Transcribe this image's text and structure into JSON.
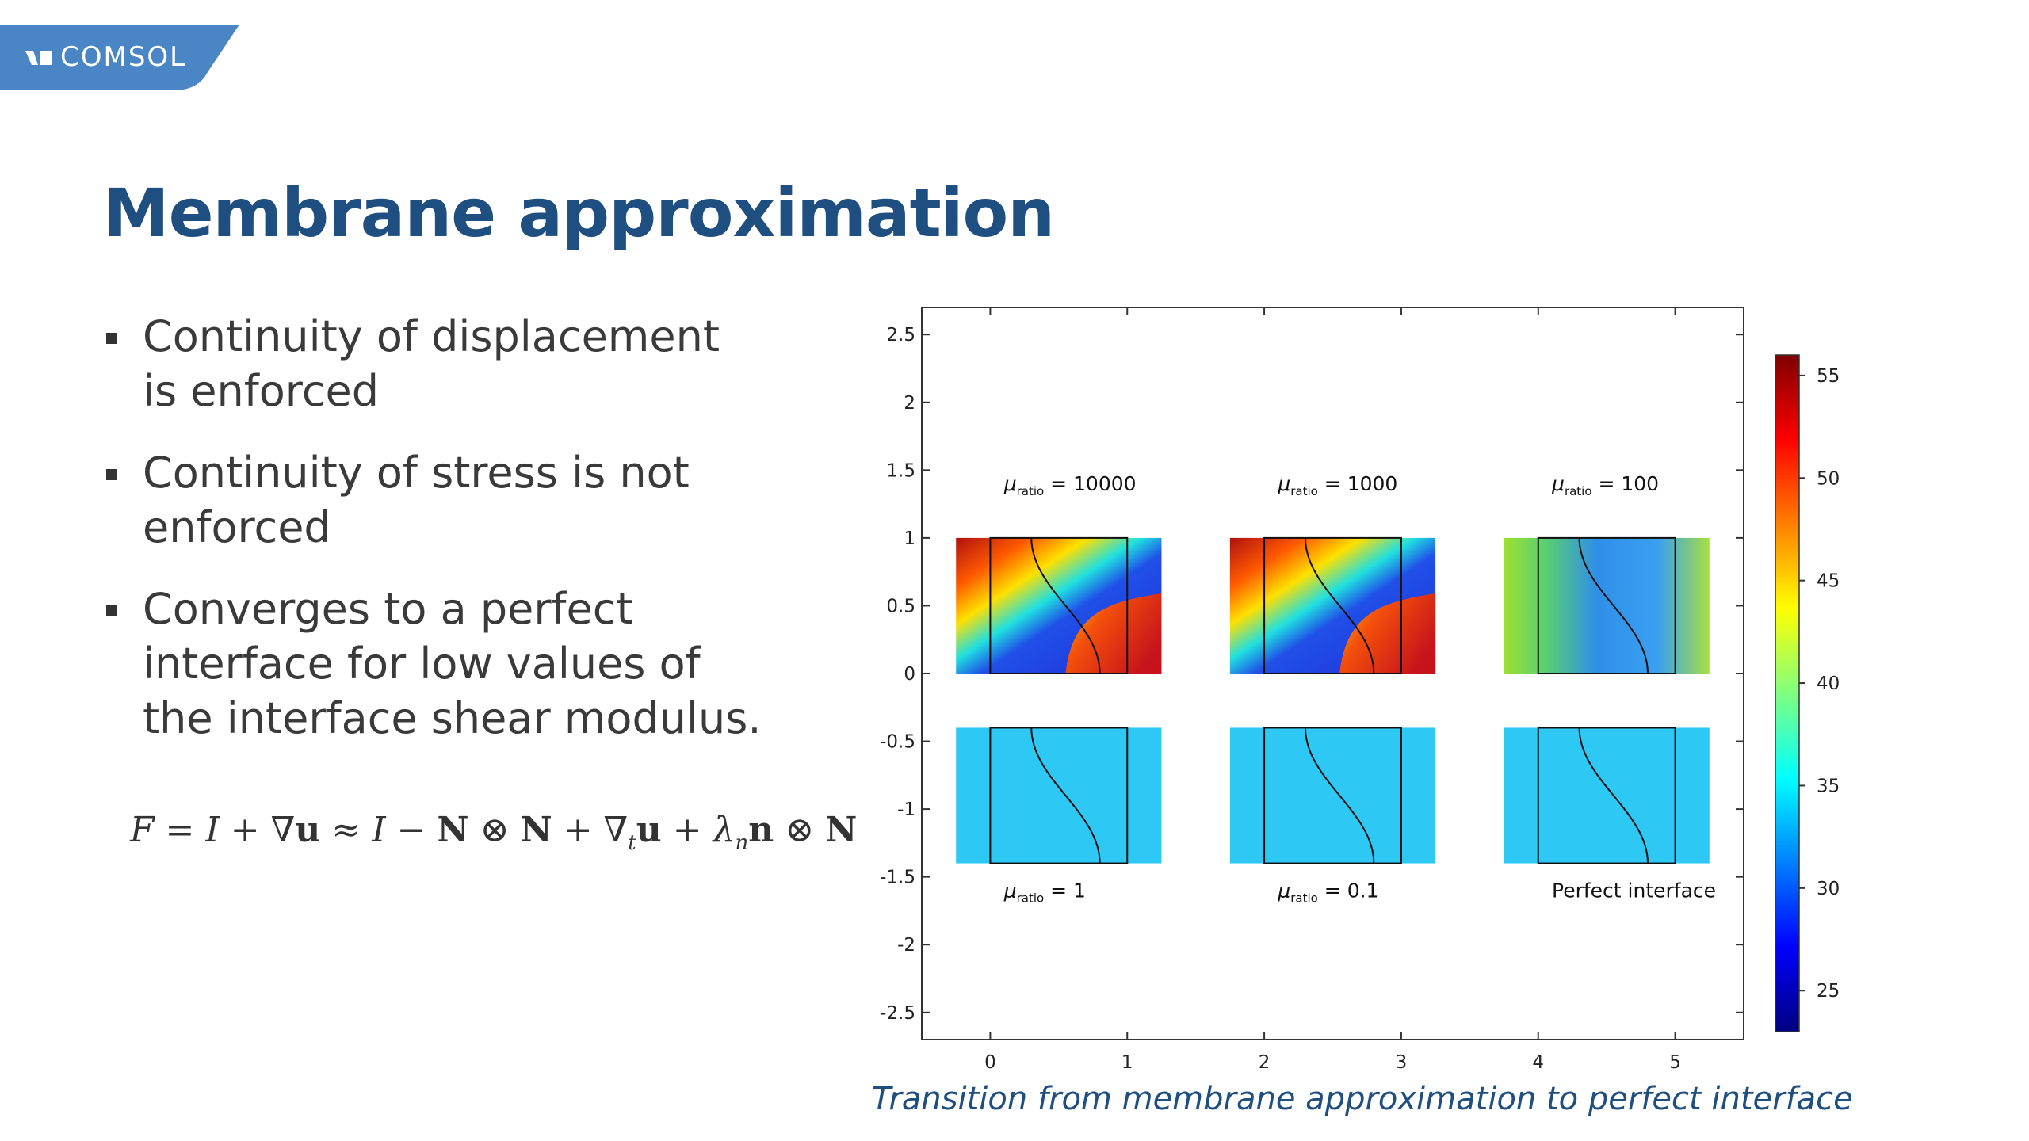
{
  "brand": {
    "logo_text": "COMSOL"
  },
  "slide": {
    "title": "Membrane approximation",
    "bullets": [
      {
        "lines": [
          "Continuity of displacement",
          "is enforced"
        ]
      },
      {
        "lines": [
          "Continuity of stress is not",
          "enforced"
        ]
      },
      {
        "lines": [
          "Converges to a perfect",
          "interface for low values of",
          "the interface shear modulus."
        ]
      }
    ],
    "formula": {
      "F": "F",
      "eq": " = ",
      "I": "I",
      "plus": " + ",
      "nabla": "∇",
      "u": "u",
      "approx": " ≈ ",
      "minus": " − ",
      "N": "N",
      "otimes": " ⊗ ",
      "t": "t",
      "lambda": "λ",
      "n_sub": "n",
      "n": "n"
    },
    "caption": "Transition from membrane approximation to perfect interface"
  },
  "figure": {
    "x_ticks": [
      "0",
      "1",
      "2",
      "3",
      "4",
      "5"
    ],
    "y_ticks": [
      "2.5",
      "2",
      "1.5",
      "1",
      "0.5",
      "0",
      "-0.5",
      "-1",
      "-1.5",
      "-2",
      "-2.5"
    ],
    "xlim": [
      -0.5,
      5.5
    ],
    "ylim": [
      -2.7,
      2.7
    ],
    "colorbar": {
      "ticks": [
        "55",
        "50",
        "45",
        "40",
        "35",
        "30",
        "25"
      ],
      "range": [
        23,
        56
      ],
      "colormap": "jet"
    },
    "panels_top": [
      {
        "mu_symbol": "μ",
        "sub": "ratio",
        "value": " = 10000"
      },
      {
        "mu_symbol": "μ",
        "sub": "ratio",
        "value": " = 1000"
      },
      {
        "mu_symbol": "μ",
        "sub": "ratio",
        "value": " = 100"
      }
    ],
    "panels_bottom": [
      {
        "mu_symbol": "μ",
        "sub": "ratio",
        "value": " = 1"
      },
      {
        "mu_symbol": "μ",
        "sub": "ratio",
        "value": " = 0.1"
      },
      {
        "plain": "Perfect interface"
      }
    ],
    "colors": {
      "brand_blue": "#4a86c6",
      "title_blue": "#1f4e80",
      "uniform_field": "#2ec8f5"
    }
  }
}
